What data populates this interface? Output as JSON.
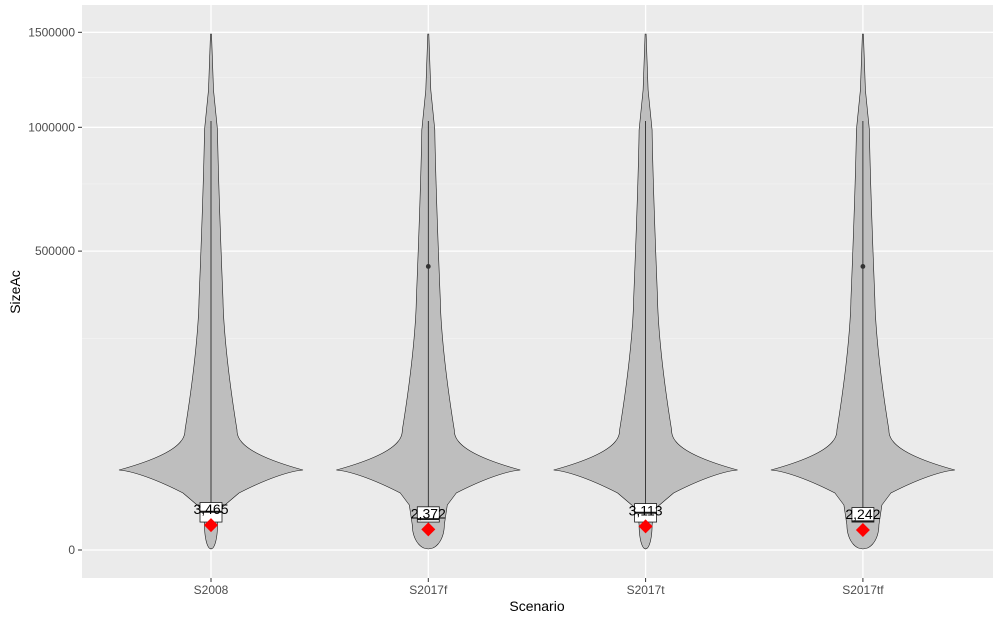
{
  "chart_data": {
    "type": "violin",
    "title": "",
    "xlabel": "Scenario",
    "ylabel": "SizeAc",
    "y_scale": "sqrt",
    "ylim": [
      0,
      1590000
    ],
    "y_ticks": [
      0,
      500000,
      1000000,
      1500000
    ],
    "y_tick_labels": [
      "0",
      "500000",
      "1000000",
      "1500000"
    ],
    "grid": true,
    "legend": "none",
    "categories": [
      "S2008",
      "S2017f",
      "S2017t",
      "S2017tf"
    ],
    "series": [
      {
        "category": "S2008",
        "min": 0,
        "q1": 4370,
        "median": 8190,
        "q3": 12600,
        "max": 1030000,
        "mean": 3465,
        "mean_label": "3,465",
        "outliers": []
      },
      {
        "category": "S2017f",
        "min": 0,
        "q1": 4370,
        "median": 5350,
        "q3": 10440,
        "max": 1030000,
        "mean": 2372,
        "mean_label": "2,372",
        "outliers": [
          450000
        ]
      },
      {
        "category": "S2017t",
        "min": 0,
        "q1": 4370,
        "median": 7750,
        "q3": 12050,
        "max": 1030000,
        "mean": 3113,
        "mean_label": "3,113",
        "outliers": []
      },
      {
        "category": "S2017tf",
        "min": 0,
        "q1": 4370,
        "median": 4570,
        "q3": 10070,
        "max": 1030000,
        "mean": 2242,
        "mean_label": "2,242",
        "outliers": [
          450000
        ]
      }
    ],
    "colors": {
      "panel_bg": "#ebebeb",
      "grid_major": "#ffffff",
      "grid_minor": "#f3f3f3",
      "violin_fill": "#bebebe",
      "violin_stroke": "#1a1a1a",
      "box_fill": "#ffffff",
      "box_stroke": "#1a1a1a",
      "mean_marker": "#ff0000"
    }
  }
}
